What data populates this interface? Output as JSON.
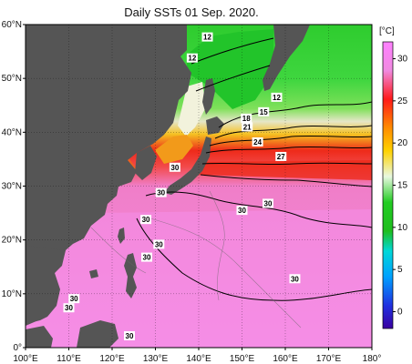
{
  "title": "Daily SSTs 01 Sep. 2020.",
  "colorbar": {
    "unit": "[°C]",
    "ticks": [
      "30",
      "25",
      "20",
      "15",
      "10",
      "5",
      "0"
    ],
    "tick_values": [
      30,
      25,
      20,
      15,
      10,
      5,
      0
    ],
    "range": [
      -2,
      32
    ]
  },
  "axes": {
    "lat_labels": [
      "60°N",
      "50°N",
      "40°N",
      "30°N",
      "20°N",
      "10°N",
      "0°"
    ],
    "lat_values": [
      60,
      50,
      40,
      30,
      20,
      10,
      0
    ],
    "lon_labels": [
      "100°E",
      "110°E",
      "120°E",
      "130°E",
      "140°E",
      "150°E",
      "160°E",
      "170°E",
      "180°"
    ],
    "lon_values": [
      100,
      110,
      120,
      130,
      140,
      150,
      160,
      170,
      180
    ]
  },
  "isotherm_labels": [
    {
      "text": "12",
      "lon": 142.0,
      "lat": 57.7
    },
    {
      "text": "12",
      "lon": 138.5,
      "lat": 53.8
    },
    {
      "text": "12",
      "lon": 158.0,
      "lat": 46.5
    },
    {
      "text": "15",
      "lon": 155.0,
      "lat": 43.8
    },
    {
      "text": "18",
      "lon": 151.0,
      "lat": 42.6
    },
    {
      "text": "21",
      "lon": 151.2,
      "lat": 41.0
    },
    {
      "text": "24",
      "lon": 153.6,
      "lat": 38.2
    },
    {
      "text": "27",
      "lon": 159.0,
      "lat": 35.5
    },
    {
      "text": "30",
      "lon": 134.5,
      "lat": 33.5
    },
    {
      "text": "30",
      "lon": 131.3,
      "lat": 28.8
    },
    {
      "text": "30",
      "lon": 150.0,
      "lat": 25.5
    },
    {
      "text": "30",
      "lon": 156.0,
      "lat": 26.8
    },
    {
      "text": "30",
      "lon": 127.8,
      "lat": 23.8
    },
    {
      "text": "30",
      "lon": 130.8,
      "lat": 19.2
    },
    {
      "text": "30",
      "lon": 128.0,
      "lat": 16.8
    },
    {
      "text": "30",
      "lon": 162.2,
      "lat": 12.8
    },
    {
      "text": "30",
      "lon": 111.2,
      "lat": 9.1
    },
    {
      "text": "30",
      "lon": 110.0,
      "lat": 7.4
    },
    {
      "text": "30",
      "lon": 124.0,
      "lat": 2.2
    }
  ]
}
